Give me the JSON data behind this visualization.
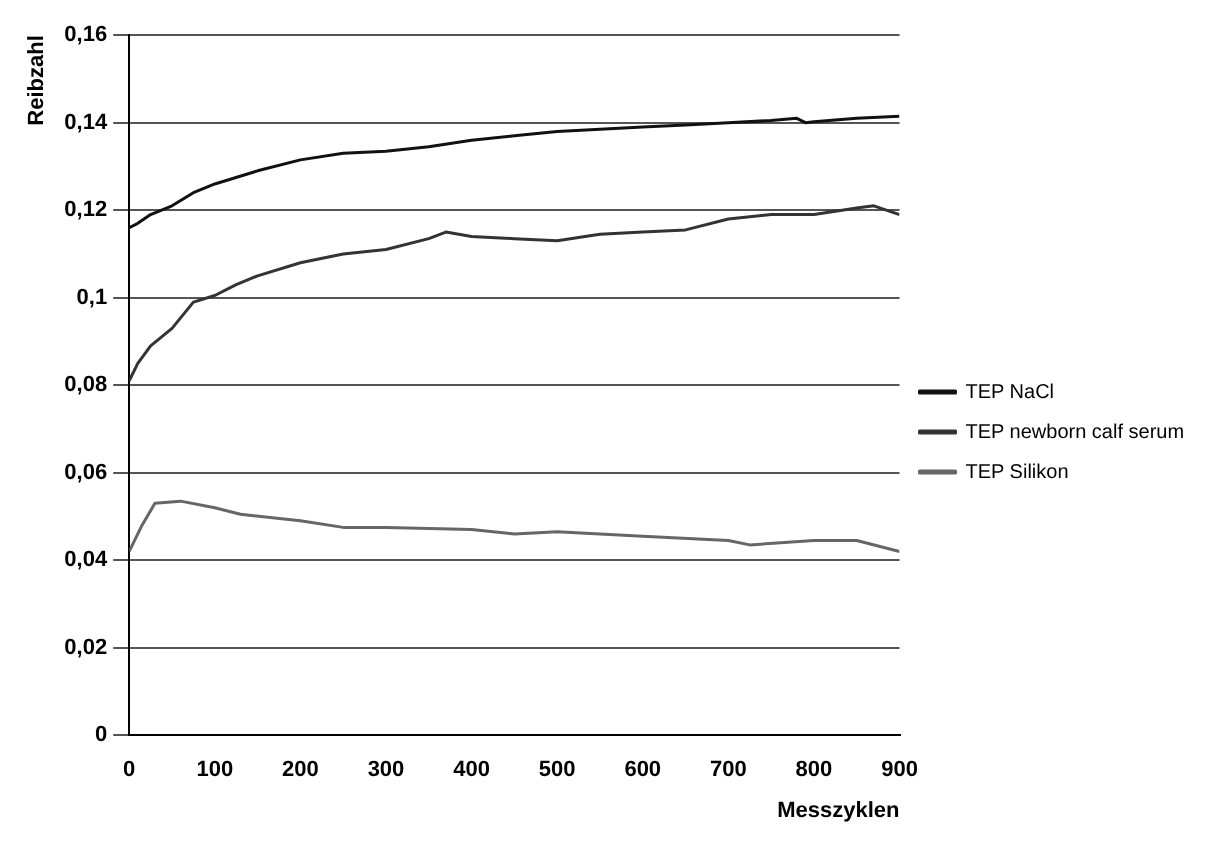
{
  "chart_data": {
    "type": "line",
    "xlabel": "Messzyklen",
    "ylabel": "Reibzahl",
    "xlim": [
      0,
      900
    ],
    "xticks": [
      0,
      100,
      200,
      300,
      400,
      500,
      600,
      700,
      800,
      900
    ],
    "ylim": [
      0,
      0.16
    ],
    "yticks": [
      0,
      {
        "value": 0.02,
        "label": "0,02"
      },
      {
        "value": 0.04,
        "label": "0,04"
      },
      {
        "value": 0.06,
        "label": "0,06"
      },
      {
        "value": 0.08,
        "label": "0,08"
      },
      {
        "value": 0.1,
        "label": "0,1"
      },
      {
        "value": 0.12,
        "label": "0,12"
      },
      {
        "value": 0.14,
        "label": "0,14"
      },
      {
        "value": 0.16,
        "label": "0,16"
      }
    ],
    "grid": "y",
    "legend": "right",
    "marker": "none",
    "line_style": "solid",
    "series": [
      {
        "name": "TEP NaCl",
        "color": "#111111",
        "x": [
          0,
          10,
          25,
          50,
          75,
          100,
          150,
          200,
          250,
          300,
          350,
          400,
          450,
          500,
          550,
          600,
          650,
          700,
          750,
          780,
          790,
          800,
          850,
          900
        ],
        "values": [
          0.116,
          0.117,
          0.119,
          0.121,
          0.124,
          0.126,
          0.129,
          0.1315,
          0.133,
          0.1335,
          0.1345,
          0.136,
          0.137,
          0.138,
          0.1385,
          0.139,
          0.1395,
          0.14,
          0.1405,
          0.141,
          0.14,
          0.1402,
          0.141,
          0.1415
        ]
      },
      {
        "name": "TEP newborn calf serum",
        "color": "#333333",
        "x": [
          0,
          10,
          25,
          50,
          75,
          100,
          125,
          150,
          200,
          250,
          300,
          350,
          370,
          400,
          450,
          500,
          550,
          600,
          650,
          700,
          750,
          800,
          850,
          870,
          900
        ],
        "values": [
          0.081,
          0.085,
          0.089,
          0.093,
          0.099,
          0.1005,
          0.103,
          0.105,
          0.108,
          0.11,
          0.111,
          0.1135,
          0.115,
          0.114,
          0.1135,
          0.113,
          0.1145,
          0.115,
          0.1155,
          0.118,
          0.119,
          0.119,
          0.1205,
          0.121,
          0.119
        ]
      },
      {
        "name": "TEP Silikon",
        "color": "#666666",
        "x": [
          0,
          15,
          30,
          60,
          100,
          130,
          200,
          250,
          300,
          400,
          450,
          500,
          550,
          600,
          700,
          725,
          800,
          850,
          900
        ],
        "values": [
          0.042,
          0.048,
          0.053,
          0.0535,
          0.052,
          0.0505,
          0.049,
          0.0475,
          0.0475,
          0.047,
          0.046,
          0.0465,
          0.046,
          0.0455,
          0.0445,
          0.0435,
          0.0445,
          0.0445,
          0.042
        ]
      }
    ]
  }
}
